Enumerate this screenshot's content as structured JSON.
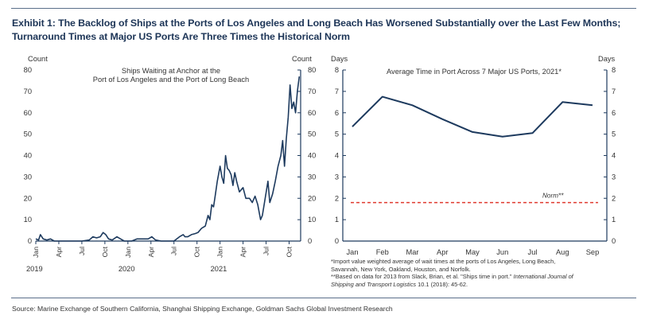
{
  "title": {
    "line1": "Exhibit 1: The Backlog of Ships at the Ports of Los Angeles and Long Beach Has Worsened Substantially over the Last Few Months;",
    "line2": "Turnaround Times at Major US Ports Are Three Times the Historical Norm"
  },
  "source": "Source: Marine Exchange of Southern California, Shanghai Shipping Exchange, Goldman Sachs Global Investment Research",
  "colors": {
    "series": "#1d3a5e",
    "norm": "#e03a2f",
    "title": "#1d3557",
    "axis": "#1d3a5e"
  },
  "chart_data": [
    {
      "type": "line",
      "title_line1": "Ships Waiting at Anchor at the",
      "title_line2": "Port of Los Angeles and the Port of Long Beach",
      "ylabel_left": "Count",
      "ylabel_right": "Count",
      "ylim": [
        0,
        80
      ],
      "yticks": [
        "0",
        "10",
        "20",
        "30",
        "40",
        "50",
        "60",
        "70",
        "80"
      ],
      "xlim": [
        2019.0,
        2021.875
      ],
      "x_tick_labels": [
        {
          "t": 2019.0,
          "label": "Jan"
        },
        {
          "t": 2019.25,
          "label": "Apr"
        },
        {
          "t": 2019.5,
          "label": "Jul"
        },
        {
          "t": 2019.75,
          "label": "Oct"
        },
        {
          "t": 2020.0,
          "label": "Jan"
        },
        {
          "t": 2020.25,
          "label": "Apr"
        },
        {
          "t": 2020.5,
          "label": "Jul"
        },
        {
          "t": 2020.75,
          "label": "Oct"
        },
        {
          "t": 2021.0,
          "label": "Jan"
        },
        {
          "t": 2021.25,
          "label": "Apr"
        },
        {
          "t": 2021.5,
          "label": "Jul"
        },
        {
          "t": 2021.75,
          "label": "Oct"
        }
      ],
      "year_labels": [
        {
          "t": 2019.0,
          "label": "2019"
        },
        {
          "t": 2020.0,
          "label": "2020"
        },
        {
          "t": 2021.0,
          "label": "2021"
        }
      ],
      "series": [
        {
          "points": [
            [
              2019.0,
              1
            ],
            [
              2019.03,
              0.5
            ],
            [
              2019.05,
              3
            ],
            [
              2019.08,
              1
            ],
            [
              2019.12,
              0.5
            ],
            [
              2019.16,
              1
            ],
            [
              2019.2,
              0
            ],
            [
              2019.3,
              0
            ],
            [
              2019.4,
              0
            ],
            [
              2019.5,
              0
            ],
            [
              2019.58,
              0.5
            ],
            [
              2019.62,
              2
            ],
            [
              2019.66,
              1.5
            ],
            [
              2019.7,
              2
            ],
            [
              2019.73,
              4
            ],
            [
              2019.76,
              3
            ],
            [
              2019.79,
              1
            ],
            [
              2019.83,
              0.5
            ],
            [
              2019.88,
              2
            ],
            [
              2019.92,
              1
            ],
            [
              2019.96,
              0
            ],
            [
              2020.04,
              0
            ],
            [
              2020.1,
              1
            ],
            [
              2020.17,
              1
            ],
            [
              2020.22,
              1
            ],
            [
              2020.26,
              2
            ],
            [
              2020.3,
              0.5
            ],
            [
              2020.36,
              0
            ],
            [
              2020.42,
              0
            ],
            [
              2020.5,
              0
            ],
            [
              2020.56,
              2
            ],
            [
              2020.6,
              3
            ],
            [
              2020.62,
              2
            ],
            [
              2020.65,
              2
            ],
            [
              2020.69,
              3
            ],
            [
              2020.73,
              3.5
            ],
            [
              2020.76,
              4
            ],
            [
              2020.8,
              6
            ],
            [
              2020.84,
              7
            ],
            [
              2020.87,
              12
            ],
            [
              2020.89,
              10
            ],
            [
              2020.91,
              17
            ],
            [
              2020.93,
              16
            ],
            [
              2020.95,
              22
            ],
            [
              2020.97,
              28
            ],
            [
              2021.0,
              35
            ],
            [
              2021.02,
              30
            ],
            [
              2021.04,
              27
            ],
            [
              2021.06,
              40
            ],
            [
              2021.08,
              34
            ],
            [
              2021.1,
              33
            ],
            [
              2021.12,
              31
            ],
            [
              2021.14,
              26
            ],
            [
              2021.16,
              32
            ],
            [
              2021.18,
              28
            ],
            [
              2021.21,
              23
            ],
            [
              2021.25,
              25
            ],
            [
              2021.28,
              20
            ],
            [
              2021.32,
              20
            ],
            [
              2021.35,
              18
            ],
            [
              2021.38,
              21
            ],
            [
              2021.41,
              17
            ],
            [
              2021.44,
              10
            ],
            [
              2021.46,
              12
            ],
            [
              2021.49,
              20
            ],
            [
              2021.52,
              28
            ],
            [
              2021.54,
              18
            ],
            [
              2021.57,
              22
            ],
            [
              2021.6,
              28
            ],
            [
              2021.63,
              35
            ],
            [
              2021.66,
              40
            ],
            [
              2021.68,
              47
            ],
            [
              2021.7,
              35
            ],
            [
              2021.72,
              48
            ],
            [
              2021.74,
              58
            ],
            [
              2021.76,
              73
            ],
            [
              2021.78,
              62
            ],
            [
              2021.8,
              65
            ],
            [
              2021.82,
              60
            ],
            [
              2021.84,
              70
            ],
            [
              2021.86,
              77
            ]
          ]
        }
      ]
    },
    {
      "type": "line",
      "title": "Average Time in Port Across 7 Major US Ports, 2021*",
      "ylabel_left": "Days",
      "ylabel_right": "Days",
      "ylim": [
        0,
        8
      ],
      "yticks": [
        "0",
        "1",
        "2",
        "3",
        "4",
        "5",
        "6",
        "7",
        "8"
      ],
      "categories": [
        "Jan",
        "Feb",
        "Mar",
        "Apr",
        "May",
        "Jun",
        "Jul",
        "Aug",
        "Sep"
      ],
      "series": [
        {
          "values": [
            5.35,
            6.75,
            6.35,
            5.7,
            5.1,
            4.88,
            5.05,
            6.5,
            6.35
          ]
        }
      ],
      "norm": {
        "value": 1.8,
        "label": "Norm**"
      },
      "footnotes": {
        "line1": "*Import value weighted average of wait times at the ports of Los Angeles, Long Beach,",
        "line2": "Savannah, New York, Oakland, Houston, and Norfolk.",
        "line3_a": "**Based on data for 2013 from Slack, Brian, et al. \"Ships time in port.\" ",
        "line3_b": "International Journal of",
        "line4_b": "Shipping and Transport Logistics",
        "line4_c": " 10.1 (2018): 45-62."
      }
    }
  ]
}
